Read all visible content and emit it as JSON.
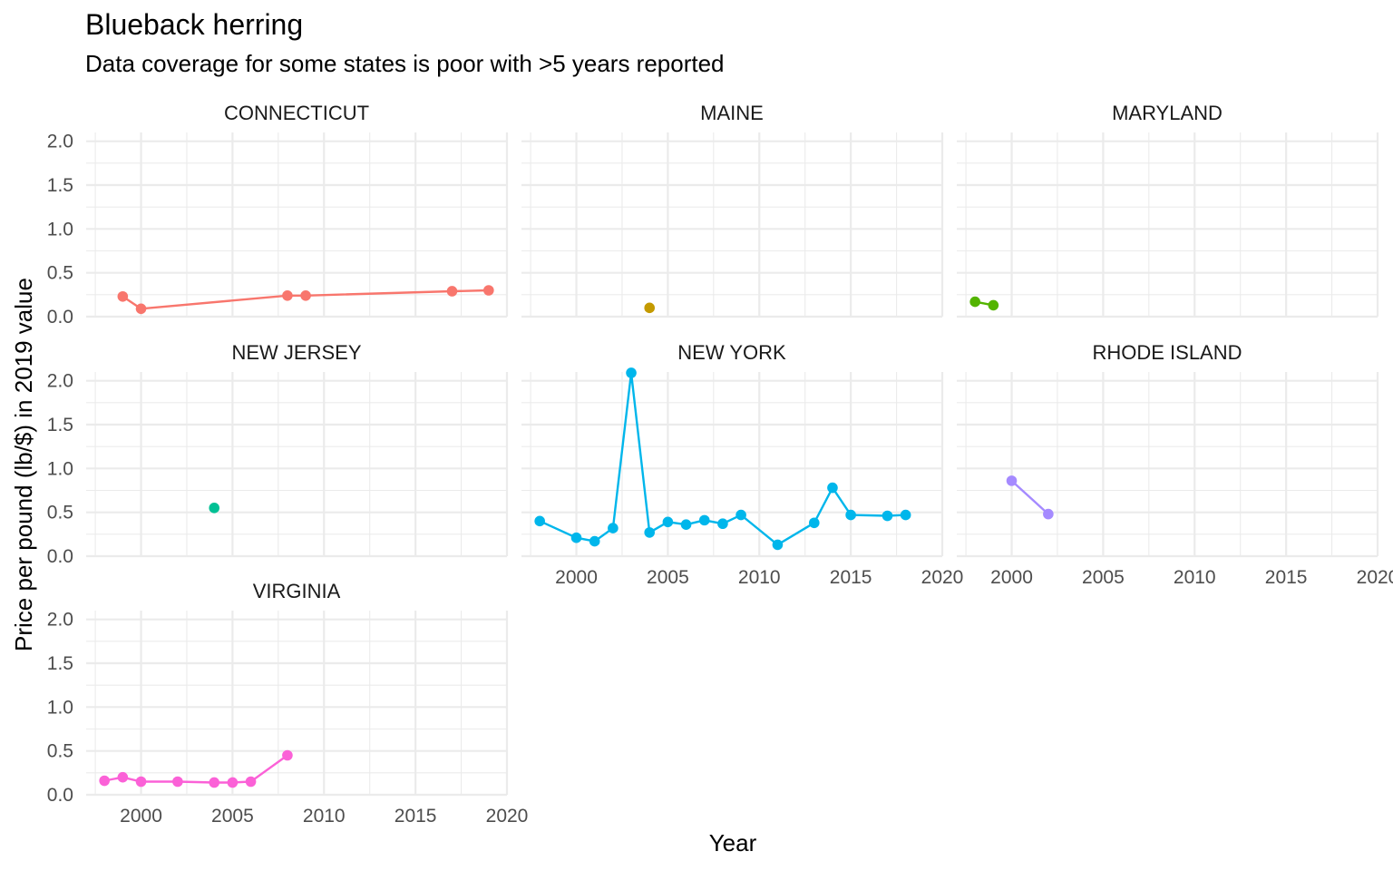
{
  "chart_data": {
    "type": "line",
    "title": "Blueback herring",
    "subtitle": "Data coverage for some states is poor with >5 years reported",
    "xlabel": "Year",
    "ylabel": "Price per pound (lb/$) in 2019 value",
    "xlim": [
      1997,
      2020
    ],
    "ylim": [
      0,
      2.1
    ],
    "x_ticks": [
      "2000",
      "2005",
      "2010",
      "2015",
      "2020"
    ],
    "y_ticks": [
      "0.0",
      "0.5",
      "1.0",
      "1.5",
      "2.0"
    ],
    "grid": true,
    "legend": "none",
    "series": [
      {
        "name": "CONNECTICUT",
        "color": "#F8766D",
        "x": [
          1999,
          2000,
          2008,
          2009,
          2017,
          2019
        ],
        "y": [
          0.23,
          0.09,
          0.24,
          0.24,
          0.29,
          0.3
        ]
      },
      {
        "name": "MAINE",
        "color": "#C49A00",
        "x": [
          2004
        ],
        "y": [
          0.1
        ]
      },
      {
        "name": "MARYLAND",
        "color": "#53B400",
        "x": [
          1998,
          1999
        ],
        "y": [
          0.17,
          0.13
        ]
      },
      {
        "name": "NEW JERSEY",
        "color": "#00C094",
        "x": [
          2004
        ],
        "y": [
          0.55
        ]
      },
      {
        "name": "NEW YORK",
        "color": "#00B6EB",
        "x": [
          1998,
          2000,
          2001,
          2002,
          2003,
          2004,
          2005,
          2006,
          2007,
          2008,
          2009,
          2011,
          2013,
          2014,
          2015,
          2017,
          2018
        ],
        "y": [
          0.4,
          0.21,
          0.17,
          0.32,
          2.09,
          0.27,
          0.39,
          0.36,
          0.41,
          0.37,
          0.47,
          0.13,
          0.38,
          0.78,
          0.47,
          0.46,
          0.47
        ]
      },
      {
        "name": "RHODE ISLAND",
        "color": "#A58AFF",
        "x": [
          2000,
          2002
        ],
        "y": [
          0.86,
          0.48
        ]
      },
      {
        "name": "VIRGINIA",
        "color": "#FB61D7",
        "x": [
          1998,
          1999,
          2000,
          2002,
          2004,
          2005,
          2006,
          2008
        ],
        "y": [
          0.16,
          0.2,
          0.15,
          0.15,
          0.14,
          0.14,
          0.15,
          0.45
        ]
      }
    ]
  }
}
